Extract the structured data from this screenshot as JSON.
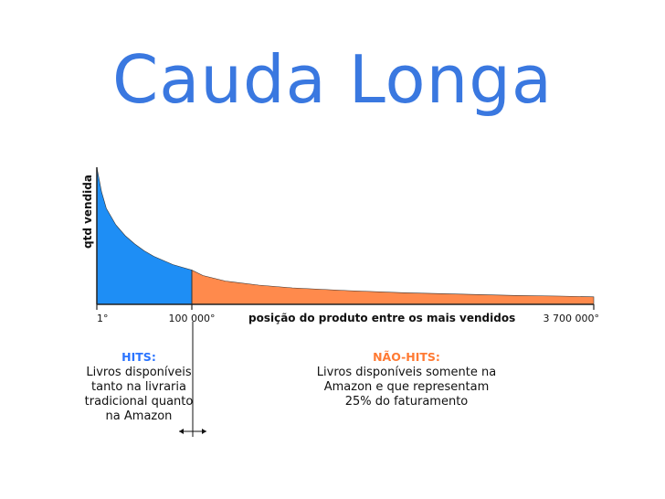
{
  "title": "Cauda Longa",
  "colors": {
    "title": "#3a78e0",
    "hits": "#1e8ef5",
    "nonhits": "#ff8a4c",
    "hits_label": "#2a74ff",
    "nonhits_label": "#ff7a33"
  },
  "chart_data": {
    "type": "area",
    "ylabel": "qtd vendida",
    "xlabel": "posição do produto entre os mais vendidos",
    "tick_labels": [
      "1°",
      "100 000°",
      "3 700 000°"
    ],
    "ticks": [
      1,
      100000,
      3700000
    ],
    "ylim": [
      0,
      100
    ],
    "grid": false,
    "series": [
      {
        "name": "HITS",
        "x": [
          1,
          5000,
          10000,
          20000,
          30000,
          40000,
          50000,
          60000,
          70000,
          80000,
          90000,
          100000
        ],
        "y": [
          100,
          82,
          70,
          58,
          50,
          44,
          39,
          35,
          32,
          29,
          27,
          25
        ]
      },
      {
        "name": "NÃO-HITS",
        "x": [
          100000,
          200000,
          400000,
          700000,
          1000000,
          1500000,
          2000000,
          2500000,
          3000000,
          3400000,
          3700000
        ],
        "y": [
          25,
          21,
          17,
          14,
          12,
          10,
          8.5,
          7.5,
          6.5,
          6,
          5.5
        ]
      }
    ]
  },
  "annotations": {
    "hits": {
      "heading": "HITS:",
      "lines": [
        "Livros disponíveis",
        "tanto na livraria",
        "tradicional quanto",
        "na Amazon"
      ]
    },
    "nonhits": {
      "heading": "NÃO-HITS:",
      "lines": [
        "Livros disponíveis somente na",
        "Amazon e que representam",
        "25% do faturamento"
      ]
    }
  }
}
